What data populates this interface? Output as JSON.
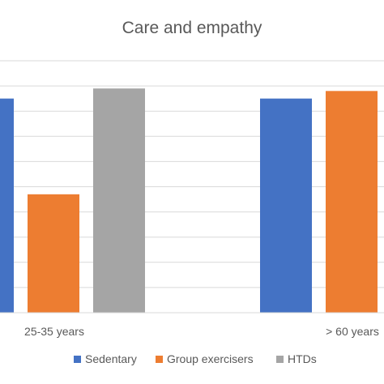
{
  "chart_data": {
    "type": "bar",
    "title": "Care and empathy",
    "xlabel": "",
    "ylabel": "",
    "categories": [
      "25-35 years",
      "> 60 years"
    ],
    "series": [
      {
        "name": "Sedentary",
        "color": "#4472C4",
        "values": [
          8.5,
          8.5
        ]
      },
      {
        "name": "Group exercisers",
        "color": "#ED7D31",
        "values": [
          4.7,
          8.8
        ]
      },
      {
        "name": "HTDs",
        "color": "#A5A5A5",
        "values": [
          8.9,
          null
        ]
      }
    ],
    "ylim": [
      0,
      10
    ],
    "grid": true,
    "legend_position": "bottom"
  }
}
